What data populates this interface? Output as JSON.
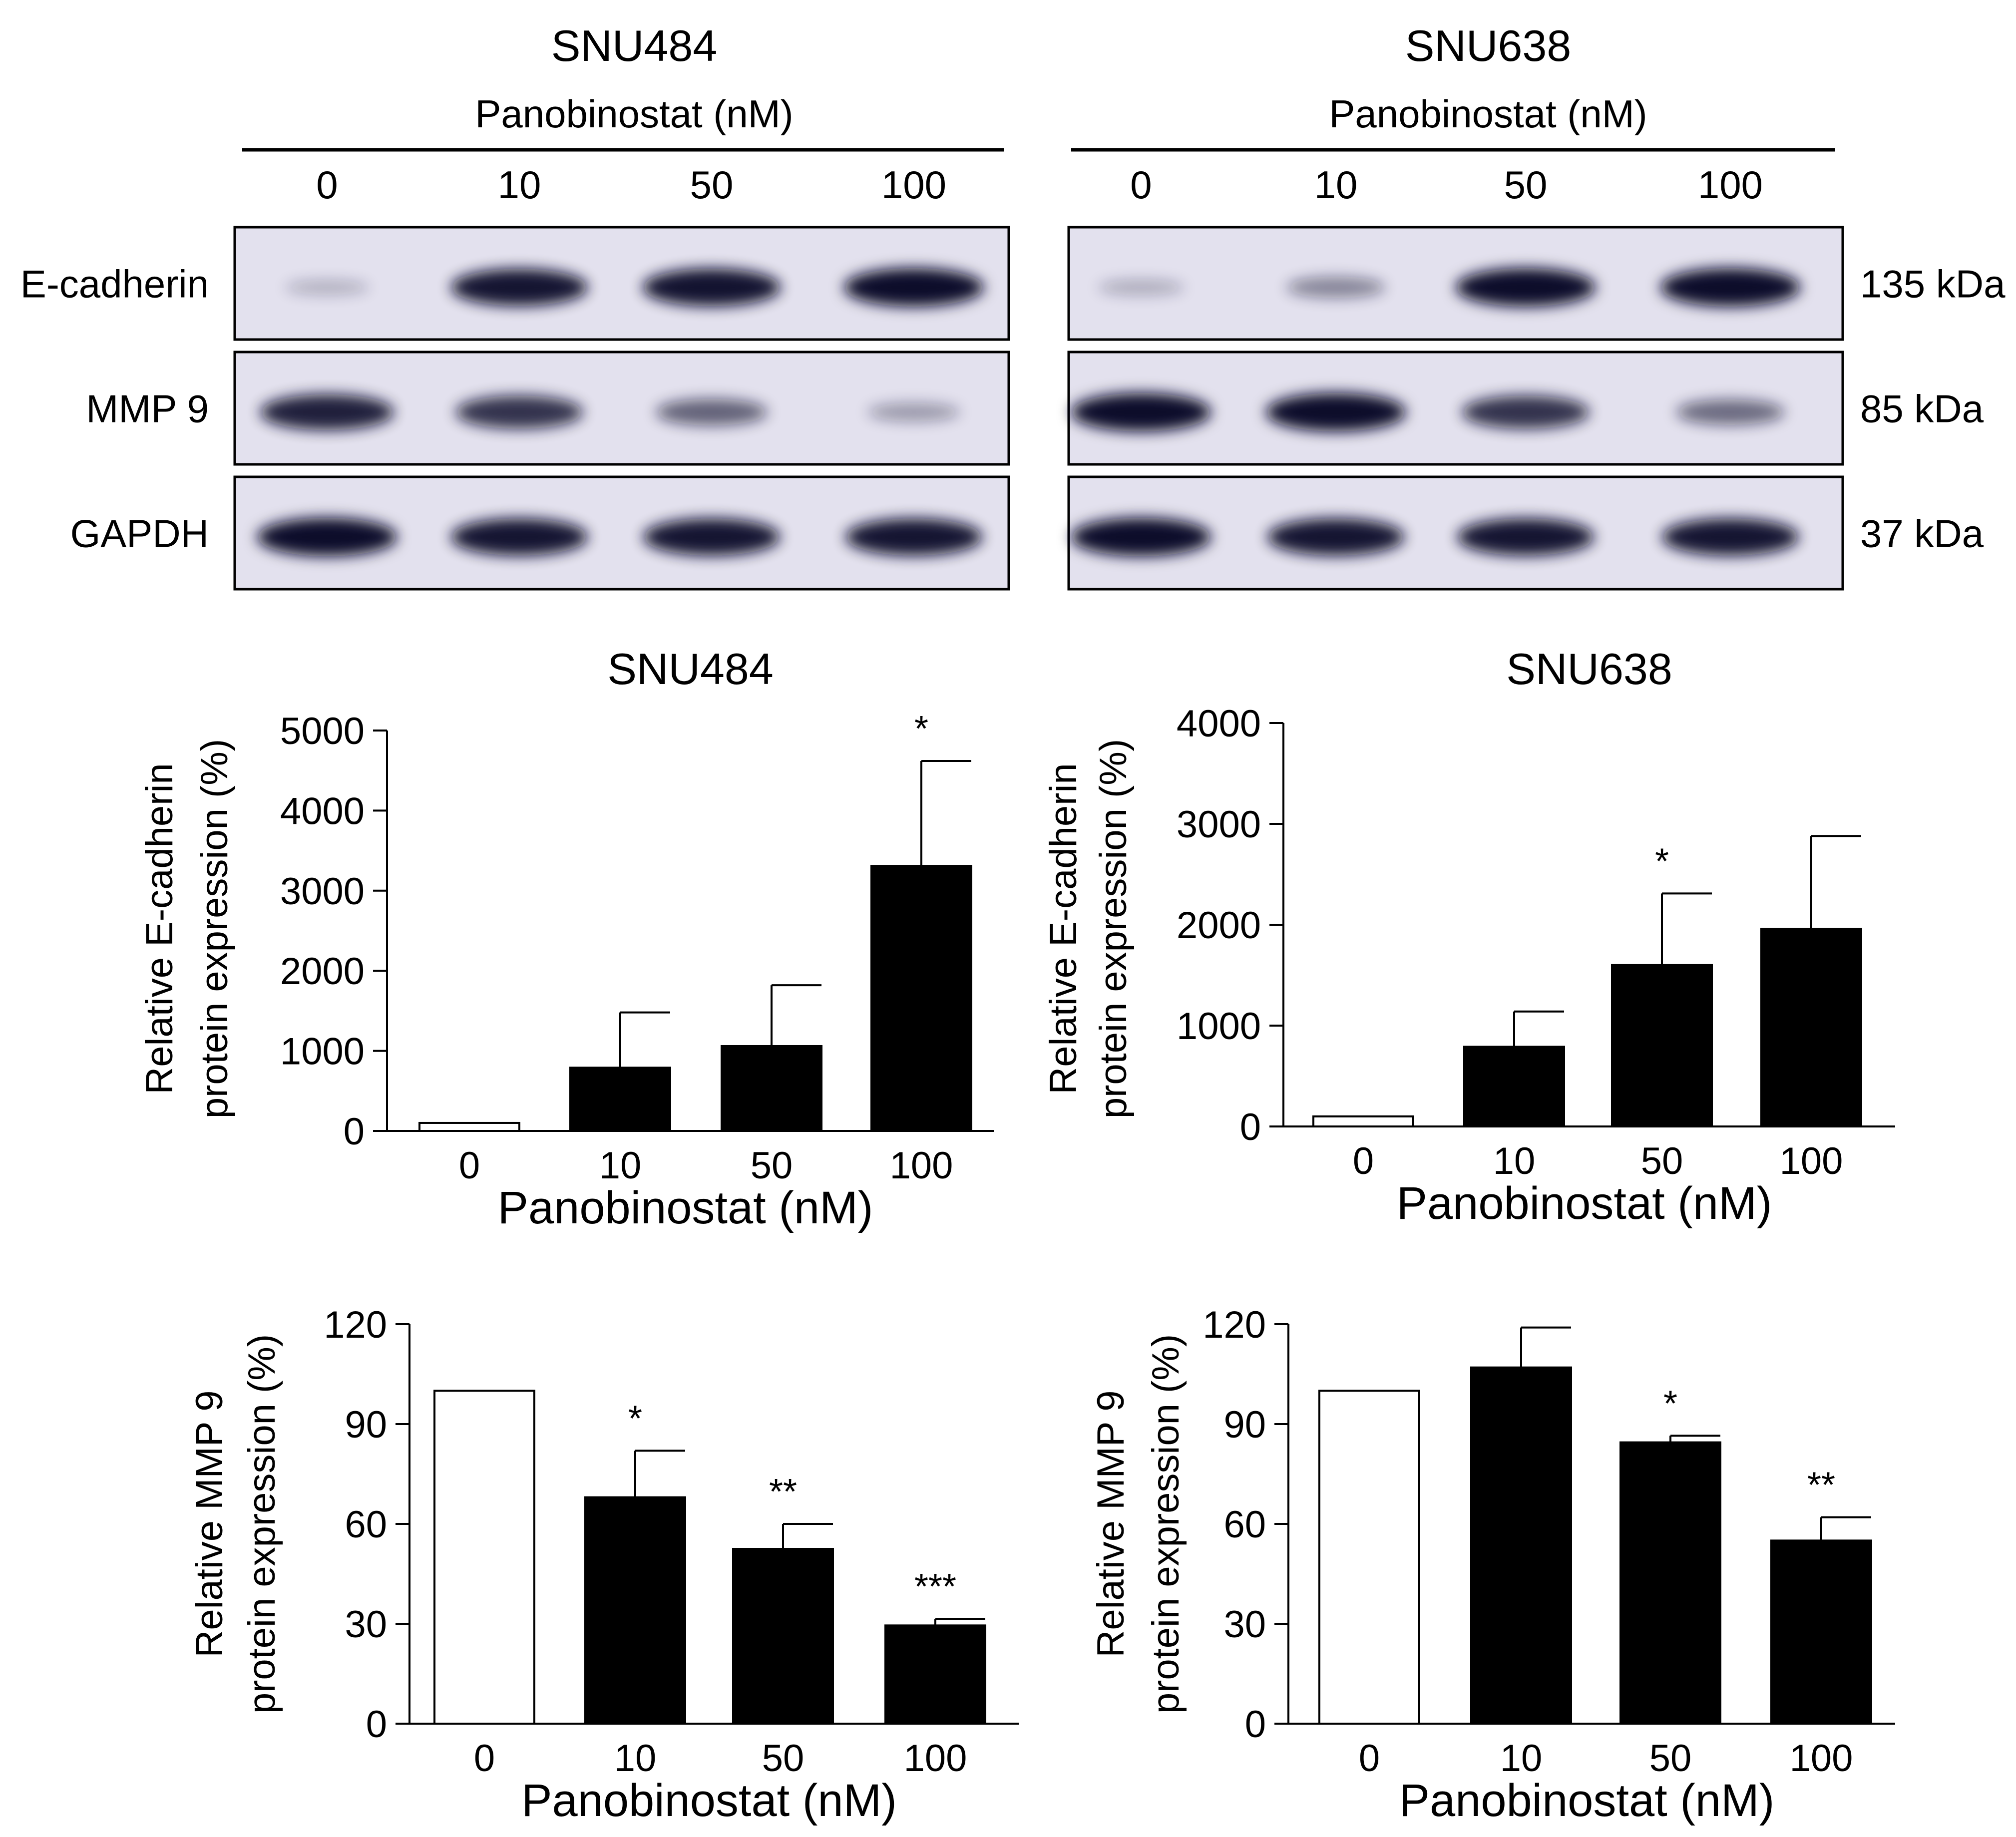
{
  "blot": {
    "lanes": [
      "0",
      "10",
      "50",
      "100"
    ],
    "treatment_label": "Panobinostat (nM)",
    "panels": [
      {
        "cell_line": "SNU484"
      },
      {
        "cell_line": "SNU638"
      }
    ],
    "rows": [
      {
        "protein": "E-cadherin",
        "size": "135 kDa"
      },
      {
        "protein": "MMP 9",
        "size": "85 kDa"
      },
      {
        "protein": "GAPDH",
        "size": "37 kDa"
      }
    ],
    "band_intensity_note": "relative band darkness per lane, 0-1",
    "bands": {
      "SNU484": {
        "E-cadherin": [
          0.12,
          0.95,
          0.97,
          1.0
        ],
        "MMP 9": [
          0.9,
          0.8,
          0.55,
          0.25
        ],
        "GAPDH": [
          1.0,
          0.95,
          0.95,
          0.95
        ]
      },
      "SNU638": {
        "E-cadherin": [
          0.15,
          0.35,
          1.0,
          1.0
        ],
        "MMP 9": [
          1.0,
          1.0,
          0.8,
          0.5
        ],
        "GAPDH": [
          1.0,
          0.95,
          0.95,
          0.95
        ]
      }
    }
  },
  "colors": {
    "bar_control": "#ffffff",
    "bar_treated": "#000000",
    "axis": "#000000",
    "blot_bg": "#e3e1ee",
    "band": "#10102a"
  },
  "chart_data": [
    {
      "type": "bar",
      "title": "SNU484",
      "xlabel": "Panobinostat (nM)",
      "ylabel": [
        "Relative E-cadherin",
        "protein expression (%)"
      ],
      "categories": [
        "0",
        "10",
        "50",
        "100"
      ],
      "values": [
        100,
        790,
        1060,
        3310
      ],
      "errors": [
        0,
        690,
        760,
        1310
      ],
      "significance": [
        "",
        "",
        "",
        "*"
      ],
      "ylim": [
        0,
        5000
      ],
      "yticks": [
        "0",
        "1000",
        "2000",
        "3000",
        "4000",
        "5000"
      ],
      "bar_fill": [
        "control",
        "treated",
        "treated",
        "treated"
      ]
    },
    {
      "type": "bar",
      "title": "SNU638",
      "xlabel": "Panobinostat (nM)",
      "ylabel": [
        "Relative E-cadherin",
        "protein expression (%)"
      ],
      "categories": [
        "0",
        "10",
        "50",
        "100"
      ],
      "values": [
        100,
        790,
        1600,
        1960
      ],
      "errors": [
        0,
        350,
        710,
        920
      ],
      "significance": [
        "",
        "",
        "*",
        ""
      ],
      "ylim": [
        0,
        4000
      ],
      "yticks": [
        "0",
        "1000",
        "2000",
        "3000",
        "4000"
      ],
      "bar_fill": [
        "control",
        "treated",
        "treated",
        "treated"
      ]
    },
    {
      "type": "bar",
      "title": "",
      "xlabel": "Panobinostat (nM)",
      "ylabel": [
        "Relative MMP 9",
        "protein expression (%)"
      ],
      "categories": [
        "0",
        "10",
        "50",
        "100"
      ],
      "values": [
        100,
        68,
        52.5,
        29.5
      ],
      "errors": [
        0,
        14,
        7.5,
        2
      ],
      "significance": [
        "",
        "*",
        "**",
        "***"
      ],
      "ylim": [
        0,
        120
      ],
      "yticks": [
        "0",
        "30",
        "60",
        "90",
        "120"
      ],
      "bar_fill": [
        "control",
        "treated",
        "treated",
        "treated"
      ]
    },
    {
      "type": "bar",
      "title": "",
      "xlabel": "Panobinostat (nM)",
      "ylabel": [
        "Relative MMP 9",
        "protein expression (%)"
      ],
      "categories": [
        "0",
        "10",
        "50",
        "100"
      ],
      "values": [
        100,
        107,
        84.5,
        55
      ],
      "errors": [
        0,
        12,
        2,
        7
      ],
      "significance": [
        "",
        "",
        "*",
        "**"
      ],
      "ylim": [
        0,
        120
      ],
      "yticks": [
        "0",
        "30",
        "60",
        "90",
        "120"
      ],
      "bar_fill": [
        "control",
        "treated",
        "treated",
        "treated"
      ]
    }
  ]
}
